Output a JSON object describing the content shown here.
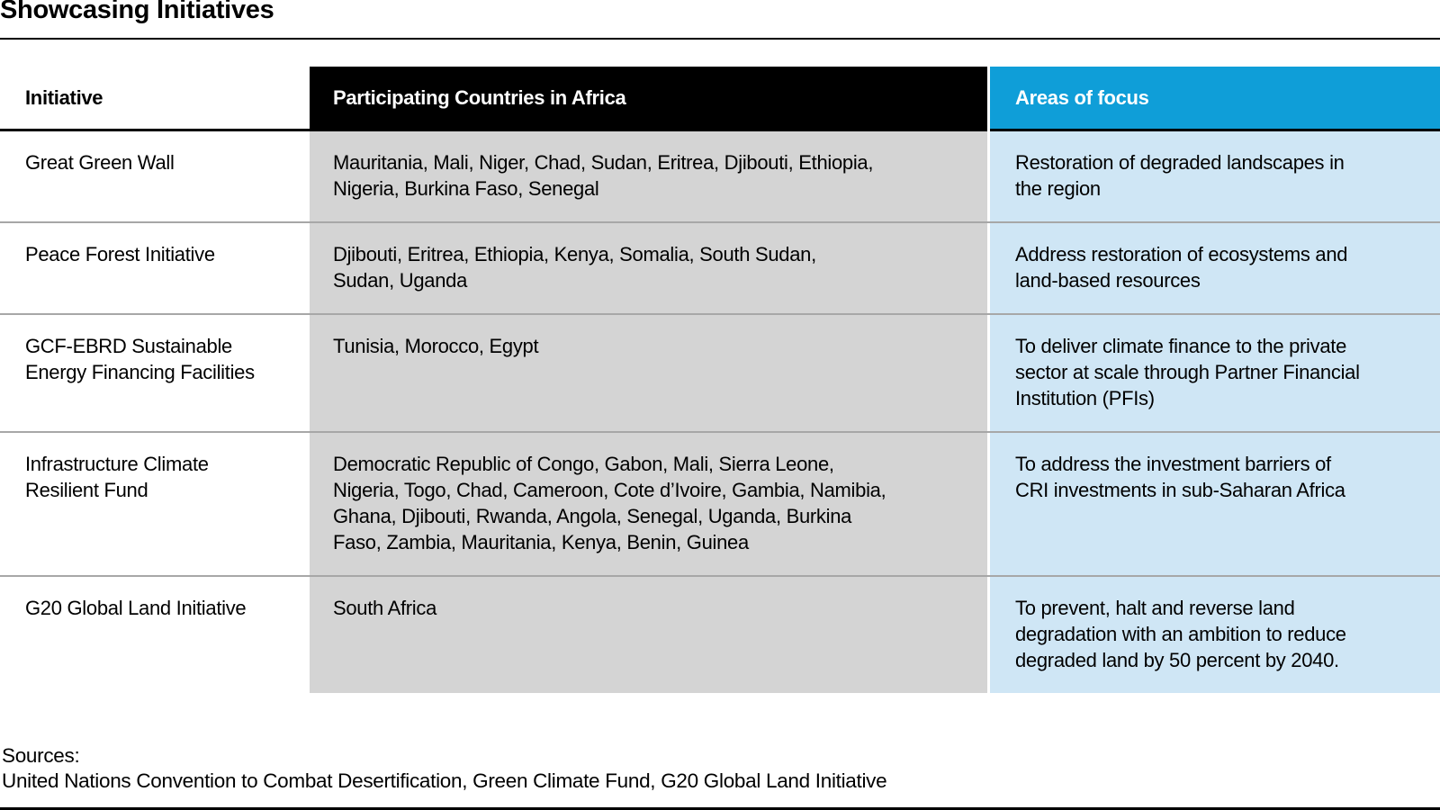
{
  "page": {
    "title": "Showcasing Initiatives",
    "sources_label": "Sources:",
    "sources_text": "United Nations Convention to Combat Desertification, Green Climate Fund, G20 Global Land Initiative"
  },
  "colors": {
    "header_initiative_bg": "#ffffff",
    "header_countries_bg": "#000000",
    "header_focus_bg": "#0f9ed8",
    "body_initiative_bg": "#ffffff",
    "body_countries_bg": "#d4d4d4",
    "body_focus_bg": "#cfe6f5",
    "row_divider": "#a7a7a7",
    "rule": "#000000"
  },
  "table": {
    "columns": [
      {
        "key": "initiative",
        "label": "Initiative"
      },
      {
        "key": "countries",
        "label": "Participating Countries in Africa"
      },
      {
        "key": "focus",
        "label": "Areas of focus"
      }
    ],
    "rows": [
      {
        "initiative": "Great Green Wall",
        "countries": "Mauritania, Mali, Niger, Chad, Sudan, Eritrea, Djibouti, Ethiopia,\nNigeria, Burkina Faso, Senegal",
        "focus": "Restoration of degraded landscapes in\nthe region"
      },
      {
        "initiative": "Peace Forest Initiative",
        "countries": "Djibouti, Eritrea, Ethiopia, Kenya, Somalia, South Sudan,\nSudan, Uganda",
        "focus": "Address restoration of ecosystems and\nland-based resources"
      },
      {
        "initiative": "GCF-EBRD Sustainable\nEnergy Financing Facilities",
        "countries": "Tunisia, Morocco, Egypt",
        "focus": "To deliver climate finance to the private\nsector at scale through Partner Financial\nInstitution (PFIs)"
      },
      {
        "initiative": "Infrastructure Climate\nResilient Fund",
        "countries": "Democratic Republic of Congo, Gabon, Mali, Sierra Leone,\nNigeria, Togo, Chad, Cameroon, Cote d’Ivoire, Gambia, Namibia,\nGhana, Djibouti, Rwanda, Angola, Senegal, Uganda, Burkina\nFaso, Zambia, Mauritania, Kenya, Benin, Guinea",
        "focus": "To address the investment barriers of\nCRI investments in sub-Saharan Africa"
      },
      {
        "initiative": "G20 Global Land Initiative",
        "countries": "South Africa",
        "focus": "To prevent, halt and reverse land\ndegradation with an ambition to reduce\ndegraded land by 50 percent by 2040."
      }
    ]
  }
}
